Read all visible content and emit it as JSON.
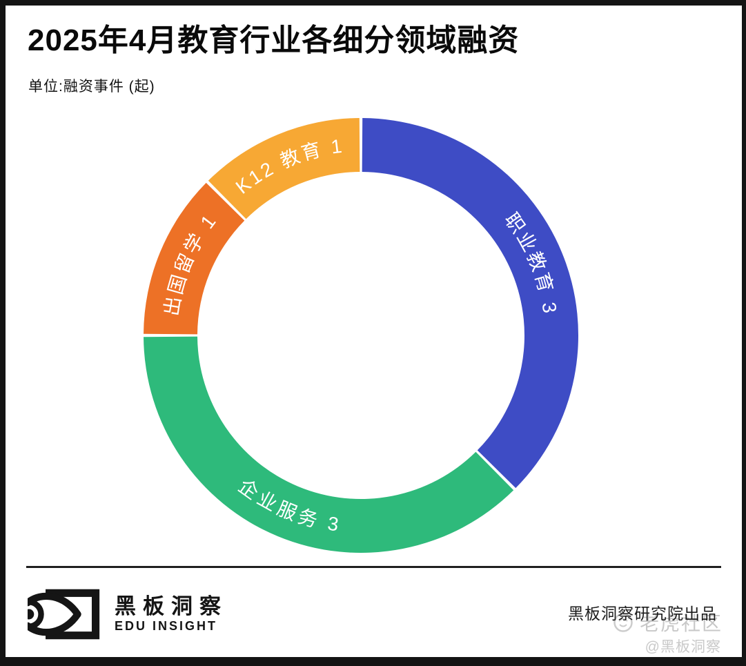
{
  "header": {
    "title": "2025年4月教育行业各细分领域融资",
    "subtitle": "单位:融资事件 (起)"
  },
  "chart_data": {
    "type": "pie",
    "variant": "donut",
    "title": "2025年4月教育行业各细分领域融资",
    "unit": "融资事件 (起)",
    "start_angle_deg": 0,
    "direction": "clockwise",
    "total": 8,
    "segments": [
      {
        "id": "vocational-education",
        "label": "职业教育",
        "value": 3,
        "display": "职业教育 3",
        "color": "#3E4CC5"
      },
      {
        "id": "enterprise-services",
        "label": "企业服务",
        "value": 3,
        "display": "企业服务 3",
        "color": "#2EBA7B"
      },
      {
        "id": "study-abroad",
        "label": "出国留学",
        "value": 1,
        "display": "出国留学 1",
        "color": "#ED7126"
      },
      {
        "id": "k12-education",
        "label": "K12教育",
        "value": 1,
        "display": "K12 教育 1",
        "color": "#F7A834"
      }
    ],
    "donut": {
      "outer_radius": 315,
      "inner_radius": 237,
      "gap_deg": 0.8,
      "label_color": "#ffffff"
    },
    "legend_position": "none",
    "grid": false
  },
  "footer": {
    "brand_cn": "黑板洞察",
    "brand_en": "EDU INSIGHT",
    "credit": "黑板洞察研究院出品"
  },
  "watermark": {
    "community": "老虎社区",
    "handle": "@黑板洞察"
  }
}
